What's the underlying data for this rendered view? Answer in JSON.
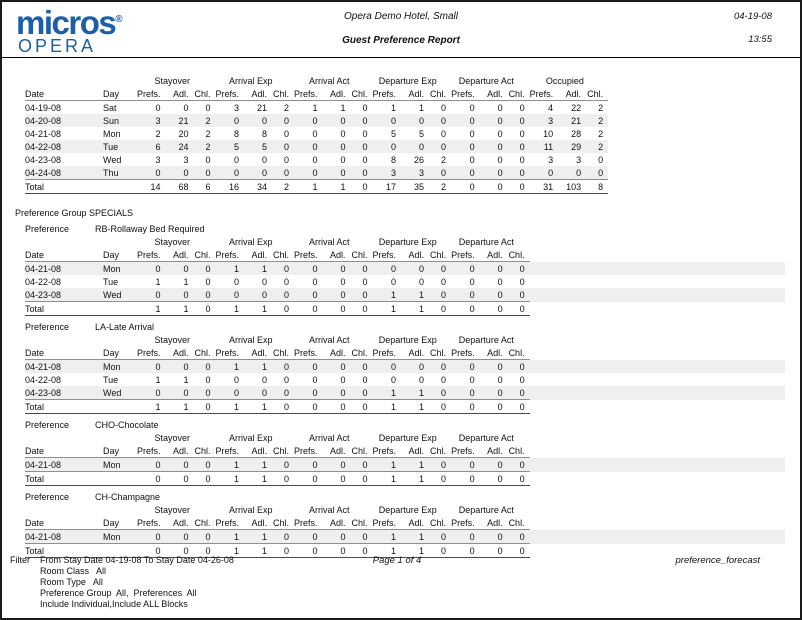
{
  "header": {
    "logo": {
      "brand": "micros",
      "registered": "®",
      "sub": "OPERA"
    },
    "hotel_name": "Opera Demo Hotel, Small",
    "report_title": "Guest Preference Report",
    "date": "04-19-08",
    "time": "13:55"
  },
  "labels": {
    "date": "Date",
    "day": "Day",
    "total": "Total",
    "preference_group": "Preference Group SPECIALS",
    "preference": "Preference"
  },
  "columns": {
    "sub_headers": [
      "Prefs.",
      "Adl.",
      "Chl."
    ],
    "main_groups": [
      "Stayover",
      "Arrival Exp",
      "Arrival Act",
      "Departure Exp",
      "Departure Act",
      "Occupied"
    ],
    "pref_groups": [
      "Stayover",
      "Arrival Exp",
      "Arrival Act",
      "Departure Exp",
      "Departure Act"
    ]
  },
  "main_table": {
    "rows": [
      {
        "date": "04-19-08",
        "day": "Sat",
        "values": [
          0,
          0,
          0,
          3,
          21,
          2,
          1,
          1,
          0,
          1,
          1,
          0,
          0,
          0,
          0,
          4,
          22,
          2
        ]
      },
      {
        "date": "04-20-08",
        "day": "Sun",
        "values": [
          3,
          21,
          2,
          0,
          0,
          0,
          0,
          0,
          0,
          0,
          0,
          0,
          0,
          0,
          0,
          3,
          21,
          2
        ]
      },
      {
        "date": "04-21-08",
        "day": "Mon",
        "values": [
          2,
          20,
          2,
          8,
          8,
          0,
          0,
          0,
          0,
          5,
          5,
          0,
          0,
          0,
          0,
          10,
          28,
          2
        ]
      },
      {
        "date": "04-22-08",
        "day": "Tue",
        "values": [
          6,
          24,
          2,
          5,
          5,
          0,
          0,
          0,
          0,
          0,
          0,
          0,
          0,
          0,
          0,
          11,
          29,
          2
        ]
      },
      {
        "date": "04-23-08",
        "day": "Wed",
        "values": [
          3,
          3,
          0,
          0,
          0,
          0,
          0,
          0,
          0,
          8,
          26,
          2,
          0,
          0,
          0,
          3,
          3,
          0
        ]
      },
      {
        "date": "04-24-08",
        "day": "Thu",
        "values": [
          0,
          0,
          0,
          0,
          0,
          0,
          0,
          0,
          0,
          3,
          3,
          0,
          0,
          0,
          0,
          0,
          0,
          0
        ]
      }
    ],
    "total": [
      14,
      68,
      6,
      16,
      34,
      2,
      1,
      1,
      0,
      17,
      35,
      2,
      0,
      0,
      0,
      31,
      103,
      8
    ]
  },
  "preference_sections": [
    {
      "name": "RB-Rollaway Bed Required",
      "rows": [
        {
          "date": "04-21-08",
          "day": "Mon",
          "values": [
            0,
            0,
            0,
            1,
            1,
            0,
            0,
            0,
            0,
            0,
            0,
            0,
            0,
            0,
            0
          ]
        },
        {
          "date": "04-22-08",
          "day": "Tue",
          "values": [
            1,
            1,
            0,
            0,
            0,
            0,
            0,
            0,
            0,
            0,
            0,
            0,
            0,
            0,
            0
          ]
        },
        {
          "date": "04-23-08",
          "day": "Wed",
          "values": [
            0,
            0,
            0,
            0,
            0,
            0,
            0,
            0,
            0,
            1,
            1,
            0,
            0,
            0,
            0
          ]
        }
      ],
      "total": [
        1,
        1,
        0,
        1,
        1,
        0,
        0,
        0,
        0,
        1,
        1,
        0,
        0,
        0,
        0
      ]
    },
    {
      "name": "LA-Late Arrival",
      "rows": [
        {
          "date": "04-21-08",
          "day": "Mon",
          "values": [
            0,
            0,
            0,
            1,
            1,
            0,
            0,
            0,
            0,
            0,
            0,
            0,
            0,
            0,
            0
          ]
        },
        {
          "date": "04-22-08",
          "day": "Tue",
          "values": [
            1,
            1,
            0,
            0,
            0,
            0,
            0,
            0,
            0,
            0,
            0,
            0,
            0,
            0,
            0
          ]
        },
        {
          "date": "04-23-08",
          "day": "Wed",
          "values": [
            0,
            0,
            0,
            0,
            0,
            0,
            0,
            0,
            0,
            1,
            1,
            0,
            0,
            0,
            0
          ]
        }
      ],
      "total": [
        1,
        1,
        0,
        1,
        1,
        0,
        0,
        0,
        0,
        1,
        1,
        0,
        0,
        0,
        0
      ]
    },
    {
      "name": "CHO-Chocolate",
      "rows": [
        {
          "date": "04-21-08",
          "day": "Mon",
          "values": [
            0,
            0,
            0,
            1,
            1,
            0,
            0,
            0,
            0,
            1,
            1,
            0,
            0,
            0,
            0
          ]
        }
      ],
      "total": [
        0,
        0,
        0,
        1,
        1,
        0,
        0,
        0,
        0,
        1,
        1,
        0,
        0,
        0,
        0
      ]
    },
    {
      "name": "CH-Champagne",
      "rows": [
        {
          "date": "04-21-08",
          "day": "Mon",
          "values": [
            0,
            0,
            0,
            1,
            1,
            0,
            0,
            0,
            0,
            1,
            1,
            0,
            0,
            0,
            0
          ]
        }
      ],
      "total": [
        0,
        0,
        0,
        1,
        1,
        0,
        0,
        0,
        0,
        1,
        1,
        0,
        0,
        0,
        0
      ]
    }
  ],
  "footer": {
    "filter_label": "Filter",
    "filter_lines": [
      "From Stay Date 04-19-08 To Stay Date 04-26-08",
      "Room Class   All",
      "Room Type   All",
      "Preference Group  All,  Preferences  All",
      "Include Individual,Include ALL Blocks"
    ],
    "page": "Page 1 of 4",
    "report_id": "preference_forecast"
  },
  "colors": {
    "brand_blue": "#1b5fa8",
    "stripe": "#efefef"
  }
}
